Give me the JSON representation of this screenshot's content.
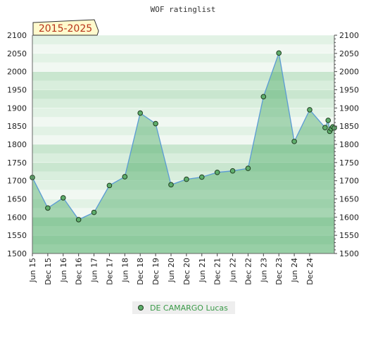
{
  "chart_data": {
    "type": "area",
    "title": "WOF ratinglist",
    "period_label": "2015-2025",
    "ylim": [
      1500,
      2100
    ],
    "yticks": [
      1500,
      1550,
      1600,
      1650,
      1700,
      1750,
      1800,
      1850,
      1900,
      1950,
      2000,
      2050,
      2100
    ],
    "xlim": [
      2015.5,
      2025.3
    ],
    "xticks": [
      {
        "label": "Jun 15",
        "x": 2015.5
      },
      {
        "label": "Dec 15",
        "x": 2016.0
      },
      {
        "label": "Jun 16",
        "x": 2016.5
      },
      {
        "label": "Dec 16",
        "x": 2017.0
      },
      {
        "label": "Jun 17",
        "x": 2017.5
      },
      {
        "label": "Dec 17",
        "x": 2018.0
      },
      {
        "label": "Jun 18",
        "x": 2018.5
      },
      {
        "label": "Dec 18",
        "x": 2019.0
      },
      {
        "label": "Dec 19",
        "x": 2019.5
      },
      {
        "label": "Jun 20",
        "x": 2020.0
      },
      {
        "label": "Dec 20",
        "x": 2020.5
      },
      {
        "label": "Jun 21",
        "x": 2021.0
      },
      {
        "label": "Dec 21",
        "x": 2021.5
      },
      {
        "label": "Jun 22",
        "x": 2022.0
      },
      {
        "label": "Dec 22",
        "x": 2022.5
      },
      {
        "label": "Jun 23",
        "x": 2023.0
      },
      {
        "label": "Dec 23",
        "x": 2023.5
      },
      {
        "label": "Jun 24",
        "x": 2024.0
      },
      {
        "label": "Dec 24",
        "x": 2024.5
      }
    ],
    "series": [
      {
        "name": "DE CAMARGO Lucas",
        "points": [
          {
            "x": 2015.5,
            "y": 1709
          },
          {
            "x": 2016.0,
            "y": 1625
          },
          {
            "x": 2016.5,
            "y": 1653
          },
          {
            "x": 2017.0,
            "y": 1593
          },
          {
            "x": 2017.5,
            "y": 1613
          },
          {
            "x": 2018.0,
            "y": 1687
          },
          {
            "x": 2018.5,
            "y": 1711
          },
          {
            "x": 2019.0,
            "y": 1886
          },
          {
            "x": 2019.5,
            "y": 1857
          },
          {
            "x": 2020.0,
            "y": 1689
          },
          {
            "x": 2020.5,
            "y": 1704
          },
          {
            "x": 2021.0,
            "y": 1710
          },
          {
            "x": 2021.5,
            "y": 1723
          },
          {
            "x": 2022.0,
            "y": 1727
          },
          {
            "x": 2022.5,
            "y": 1734
          },
          {
            "x": 2023.0,
            "y": 1931
          },
          {
            "x": 2023.5,
            "y": 2051
          },
          {
            "x": 2024.0,
            "y": 1808
          },
          {
            "x": 2024.5,
            "y": 1895
          },
          {
            "x": 2025.0,
            "y": 1846
          },
          {
            "x": 2025.1,
            "y": 1866
          },
          {
            "x": 2025.15,
            "y": 1836
          },
          {
            "x": 2025.2,
            "y": 1843
          },
          {
            "x": 2025.25,
            "y": 1848
          },
          {
            "x": 2025.3,
            "y": 1845
          }
        ]
      }
    ],
    "colors": {
      "line": "#5b9bd5",
      "marker_fill": "#5fae6c",
      "marker_stroke": "#1f3d1f",
      "area_fill": "#3fa55b",
      "badge_bg": "#fffacd",
      "badge_text": "#b8341b",
      "legend_bg": "#eeeeee",
      "legend_text": "#3a9a48"
    },
    "grid": true,
    "legend_position": "bottom"
  }
}
